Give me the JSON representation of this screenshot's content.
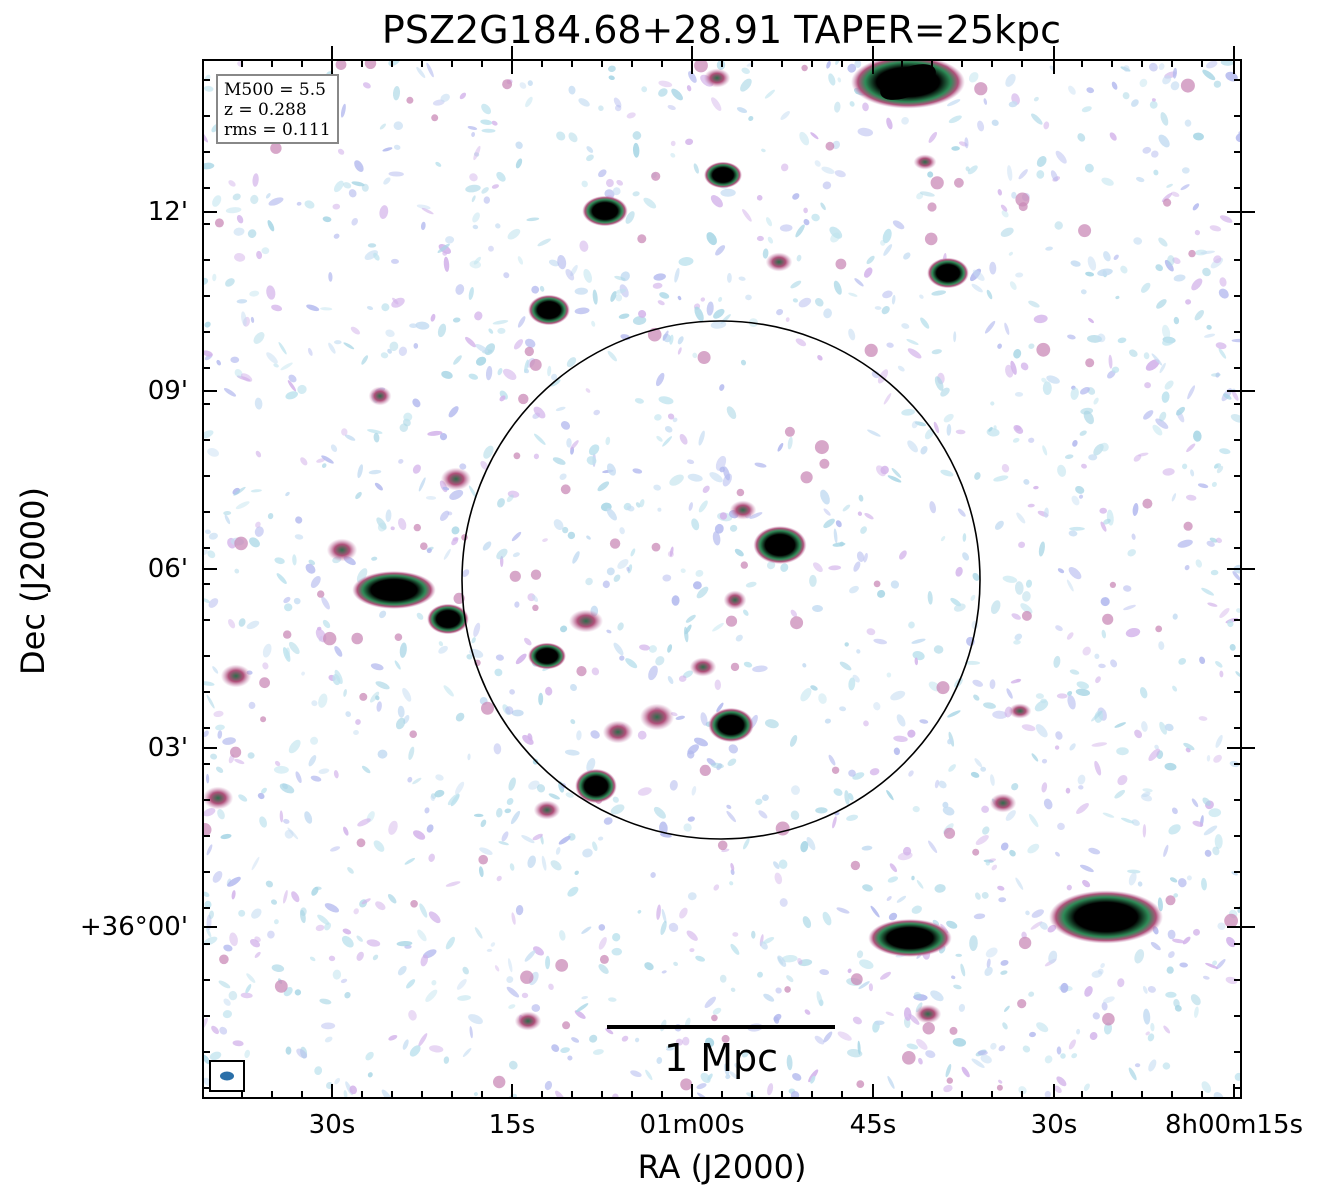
{
  "figure": {
    "title": "PSZ2G184.68+28.91 TAPER=25kpc",
    "xlabel": "RA (J2000)",
    "ylabel": "Dec (J2000)",
    "x_ticks": [
      "30s",
      "15s",
      "01m00s",
      "45s",
      "30s",
      "8h00m15s"
    ],
    "y_ticks": [
      "12'",
      "09'",
      "06'",
      "03'",
      "+36°00'"
    ],
    "info": {
      "m500": "M500 = 5.5",
      "z": "z = 0.288",
      "rms": "rms = 0.111"
    },
    "scalebar_label": "1 Mpc"
  },
  "colors": {
    "strong_source": "#000000",
    "source_ring": "#2e8b57",
    "emission_mid": "#c98ab7",
    "emission_low": "#b3b9ee",
    "noise": "#bfe3ee",
    "beam": "#2a6fa8"
  }
}
